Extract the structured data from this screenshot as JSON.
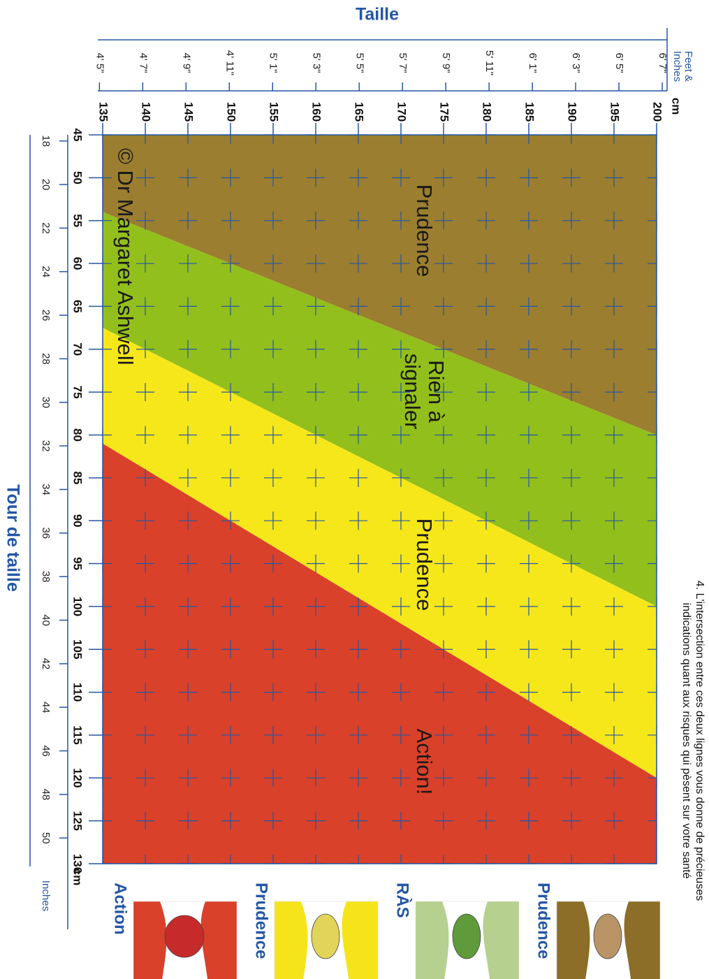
{
  "header": {
    "lines": [
      "4. L'intersection entre ces deux lignes vous donne de précieuses",
      "indications quant aux risques qui pèsent sur votre santé"
    ]
  },
  "chart_data": {
    "type": "zones",
    "y_title": "Taille",
    "x_title": "Tour de taille",
    "y2_unit": [
      "Feet &",
      "Inches"
    ],
    "y_unit": "cm",
    "x_unit": "cm",
    "x2_unit": "Inches",
    "heights": [
      135,
      200
    ],
    "boundaries": [
      [
        54,
        80
      ],
      [
        67.5,
        100
      ],
      [
        81,
        120
      ]
    ],
    "zones": [
      {
        "label": [
          "Prudence"
        ],
        "color": "#9b7e2f"
      },
      {
        "label": [
          "Rien à",
          "signaler"
        ],
        "color": "#93bf1c"
      },
      {
        "label": [
          "Prudence"
        ],
        "color": "#f6e71a"
      },
      {
        "label": [
          "Action!"
        ],
        "color": "#d9412a"
      }
    ],
    "xlim": [
      45,
      130
    ],
    "xticks": [
      45,
      50,
      55,
      60,
      65,
      70,
      75,
      80,
      85,
      90,
      95,
      100,
      105,
      110,
      115,
      120,
      125,
      130
    ],
    "ylim": [
      135,
      200
    ],
    "yticks": [
      135,
      140,
      145,
      150,
      155,
      160,
      165,
      170,
      175,
      180,
      185,
      190,
      195,
      200
    ],
    "x2lim": [
      17.72,
      51.18
    ],
    "x2ticks": [
      18,
      20,
      22,
      24,
      26,
      28,
      30,
      32,
      34,
      36,
      38,
      40,
      42,
      44,
      46,
      48,
      50
    ],
    "y2lim": [
      53.15,
      78.74
    ],
    "y2ticks": [
      {
        "value": 53,
        "label": "4' 5\""
      },
      {
        "value": 55,
        "label": "4' 7\""
      },
      {
        "value": 57,
        "label": "4' 9\""
      },
      {
        "value": 59,
        "label": "4' 11\""
      },
      {
        "value": 61,
        "label": "5' 1\""
      },
      {
        "value": 63,
        "label": "5' 3\""
      },
      {
        "value": 65,
        "label": "5' 5\""
      },
      {
        "value": 67,
        "label": "5' 7\""
      },
      {
        "value": 69,
        "label": "5' 9\""
      },
      {
        "value": 71,
        "label": "5' 11\""
      },
      {
        "value": 73,
        "label": "6' 1\""
      },
      {
        "value": 75,
        "label": "6' 3\""
      },
      {
        "value": 77,
        "label": "6' 5\""
      },
      {
        "value": 79,
        "label": "6' 7\""
      }
    ],
    "grid": true,
    "grid_color": "#2456a4",
    "annotation": "© Dr Margaret Ashwell",
    "legend": [
      {
        "label": "Prudence",
        "color": "#8c6e28",
        "fruit_color": "#b89467"
      },
      {
        "label": "RÀS",
        "color": "#b5d08f",
        "fruit_color": "#5f9b3a"
      },
      {
        "label": "Prudence",
        "color": "#f5e41a",
        "fruit_color": "#e2d45a"
      },
      {
        "label": "Action",
        "color": "#d9412a",
        "fruit_color": "#c62a2a"
      }
    ]
  }
}
